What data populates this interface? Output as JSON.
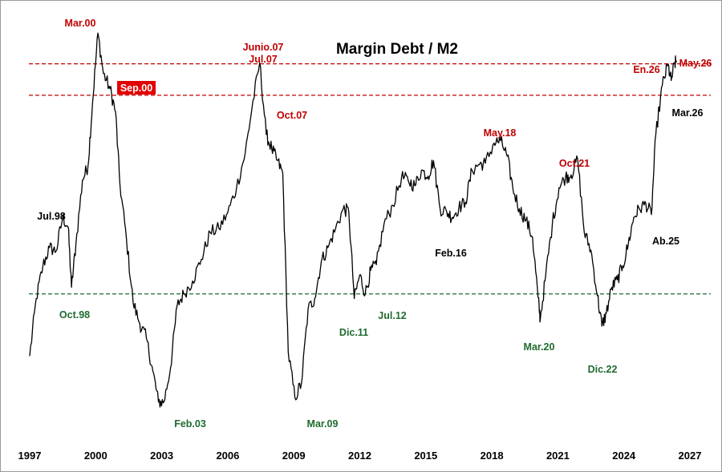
{
  "chart_data": {
    "type": "line",
    "title": "Margin Debt / M2",
    "xlabel": "",
    "ylabel": "",
    "xlim": [
      1997,
      2027
    ],
    "ylim": [
      0,
      100
    ],
    "y_axis_labels": "none",
    "grid": false,
    "legend": "none",
    "x_ticks": [
      "1997",
      "2000",
      "2003",
      "2006",
      "2009",
      "2012",
      "2015",
      "2018",
      "2021",
      "2024",
      "2027"
    ],
    "x_tick_values": [
      1997,
      2000,
      2003,
      2006,
      2009,
      2012,
      2015,
      2018,
      2021,
      2024,
      2027
    ],
    "reference_lines": [
      {
        "level": 90.8,
        "color": "#c00000",
        "style": "dashed"
      },
      {
        "level": 82.7,
        "color": "#c00000",
        "style": "dashed"
      },
      {
        "level": 31.6,
        "color": "#1e6b2e",
        "style": "dashed"
      }
    ],
    "series": [
      {
        "color": "#000000",
        "points": [
          [
            1997.0,
            15.6
          ],
          [
            1997.3,
            30.4
          ],
          [
            1997.6,
            38.8
          ],
          [
            1997.9,
            43.5
          ],
          [
            1998.2,
            42.6
          ],
          [
            1998.5,
            51.3
          ],
          [
            1998.75,
            48.7
          ],
          [
            1998.9,
            33.3
          ],
          [
            1999.1,
            44.4
          ],
          [
            1999.4,
            60.9
          ],
          [
            1999.65,
            64.5
          ],
          [
            1999.85,
            80.3
          ],
          [
            2000.1,
            98.7
          ],
          [
            2000.35,
            88.3
          ],
          [
            2000.65,
            84.4
          ],
          [
            2000.9,
            78.5
          ],
          [
            2001.1,
            59.8
          ],
          [
            2001.4,
            45.6
          ],
          [
            2001.7,
            29.4
          ],
          [
            2002.0,
            24.0
          ],
          [
            2002.3,
            20.3
          ],
          [
            2002.6,
            11.7
          ],
          [
            2002.85,
            3.8
          ],
          [
            2003.1,
            3.8
          ],
          [
            2003.4,
            12.6
          ],
          [
            2003.7,
            28.6
          ],
          [
            2004.0,
            31.6
          ],
          [
            2004.4,
            34.9
          ],
          [
            2004.8,
            40.5
          ],
          [
            2005.2,
            47.4
          ],
          [
            2005.6,
            48.4
          ],
          [
            2006.0,
            52.5
          ],
          [
            2006.4,
            58.9
          ],
          [
            2006.8,
            68.0
          ],
          [
            2007.1,
            79.4
          ],
          [
            2007.45,
            91.1
          ],
          [
            2007.75,
            72.6
          ],
          [
            2008.0,
            68.9
          ],
          [
            2008.25,
            65.9
          ],
          [
            2008.5,
            62.6
          ],
          [
            2008.75,
            16.6
          ],
          [
            2009.05,
            4.9
          ],
          [
            2009.35,
            8.6
          ],
          [
            2009.65,
            27.6
          ],
          [
            2009.95,
            30.4
          ],
          [
            2010.25,
            39.9
          ],
          [
            2010.55,
            43.5
          ],
          [
            2010.9,
            48.4
          ],
          [
            2011.25,
            53.5
          ],
          [
            2011.5,
            52.7
          ],
          [
            2011.75,
            30.4
          ],
          [
            2012.0,
            36.5
          ],
          [
            2012.25,
            31.6
          ],
          [
            2012.5,
            37.7
          ],
          [
            2012.75,
            39.1
          ],
          [
            2013.1,
            49.6
          ],
          [
            2013.5,
            54.4
          ],
          [
            2013.9,
            61.7
          ],
          [
            2014.2,
            60.7
          ],
          [
            2014.5,
            59.4
          ],
          [
            2014.8,
            63.4
          ],
          [
            2015.1,
            61.9
          ],
          [
            2015.35,
            65.9
          ],
          [
            2015.65,
            53.5
          ],
          [
            2015.95,
            52.7
          ],
          [
            2016.2,
            51.3
          ],
          [
            2016.5,
            53.8
          ],
          [
            2016.8,
            55.2
          ],
          [
            2017.1,
            63.4
          ],
          [
            2017.4,
            64.9
          ],
          [
            2017.7,
            65.2
          ],
          [
            2018.1,
            70.4
          ],
          [
            2018.4,
            71.0
          ],
          [
            2018.7,
            67.0
          ],
          [
            2018.95,
            58.9
          ],
          [
            2019.25,
            53.5
          ],
          [
            2019.55,
            50.6
          ],
          [
            2019.85,
            46.1
          ],
          [
            2020.1,
            30.7
          ],
          [
            2020.2,
            25.0
          ],
          [
            2020.45,
            36.5
          ],
          [
            2020.75,
            49.6
          ],
          [
            2021.05,
            58.9
          ],
          [
            2021.35,
            61.7
          ],
          [
            2021.6,
            62.2
          ],
          [
            2021.9,
            66.3
          ],
          [
            2022.2,
            47.4
          ],
          [
            2022.5,
            42.9
          ],
          [
            2022.8,
            31.1
          ],
          [
            2023.0,
            23.3
          ],
          [
            2023.2,
            26.6
          ],
          [
            2023.45,
            33.3
          ],
          [
            2023.7,
            35.2
          ],
          [
            2023.95,
            38.8
          ],
          [
            2024.2,
            44.4
          ],
          [
            2024.45,
            51.3
          ],
          [
            2024.7,
            53.5
          ],
          [
            2025.0,
            54.8
          ],
          [
            2025.25,
            52.0
          ],
          [
            2025.45,
            72.6
          ],
          [
            2025.75,
            85.4
          ],
          [
            2026.0,
            90.5
          ],
          [
            2026.15,
            86.5
          ],
          [
            2026.3,
            90.8
          ],
          [
            2026.4,
            91.5
          ]
        ]
      }
    ],
    "annotations": [
      {
        "text": "Mar.00",
        "color": "#c00000",
        "boxed": false
      },
      {
        "text": "Sep.00",
        "color": "#ffffff",
        "boxed": true,
        "box_color": "#e00000"
      },
      {
        "text": "Junio.07",
        "color": "#c00000",
        "boxed": false
      },
      {
        "text": "Jul.07",
        "color": "#c00000",
        "boxed": false
      },
      {
        "text": "Oct.07",
        "color": "#c00000",
        "boxed": false
      },
      {
        "text": "May.18",
        "color": "#c00000",
        "boxed": false
      },
      {
        "text": "Oct.21",
        "color": "#c00000",
        "boxed": false
      },
      {
        "text": "En.26",
        "color": "#c00000",
        "boxed": false
      },
      {
        "text": "May.26",
        "color": "#c00000",
        "boxed": false
      },
      {
        "text": "Mar.26",
        "color": "#000000",
        "boxed": false
      },
      {
        "text": "Jul.98",
        "color": "#000000",
        "boxed": false
      },
      {
        "text": "Feb.16",
        "color": "#000000",
        "boxed": false
      },
      {
        "text": "Ab.25",
        "color": "#000000",
        "boxed": false
      },
      {
        "text": "Oct.98",
        "color": "#1e6b2e",
        "boxed": false
      },
      {
        "text": "Feb.03",
        "color": "#1e6b2e",
        "boxed": false
      },
      {
        "text": "Mar.09",
        "color": "#1e6b2e",
        "boxed": false
      },
      {
        "text": "Dic.11",
        "color": "#1e6b2e",
        "boxed": false
      },
      {
        "text": "Jul.12",
        "color": "#1e6b2e",
        "boxed": false
      },
      {
        "text": "Mar.20",
        "color": "#1e6b2e",
        "boxed": false
      },
      {
        "text": "Dic.22",
        "color": "#1e6b2e",
        "boxed": false
      }
    ]
  }
}
